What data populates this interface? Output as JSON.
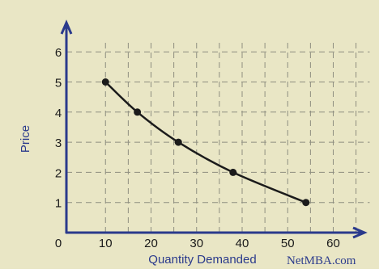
{
  "colors": {
    "background": "#e9e6c5",
    "axis": "#2a3a8c",
    "grid": "#8e8e80",
    "curve": "#1b1b1b",
    "point": "#1b1b1b",
    "axis_title": "#2a3a8c",
    "tick_label": "#1a1a1a"
  },
  "watermark": "NetMBA.com",
  "chart_data": {
    "type": "line",
    "title": "",
    "xlabel": "Quantity Demanded",
    "ylabel": "Price",
    "xlim": [
      0,
      72
    ],
    "ylim": [
      0,
      7
    ],
    "x_tick_labels": [
      "0",
      "10",
      "20",
      "30",
      "40",
      "50",
      "60"
    ],
    "x_tick_values": [
      0,
      10,
      20,
      30,
      40,
      50,
      60
    ],
    "y_tick_labels": [
      "1",
      "2",
      "3",
      "4",
      "5",
      "6"
    ],
    "y_tick_values": [
      1,
      2,
      3,
      4,
      5,
      6
    ],
    "grid": true,
    "grid_x": [
      10,
      15,
      20,
      25,
      30,
      35,
      40,
      45,
      50,
      55,
      60,
      65
    ],
    "grid_y": [
      1,
      2,
      3,
      4,
      5,
      6
    ],
    "series": [
      {
        "x": [
          10,
          17,
          26,
          38,
          54
        ],
        "y": [
          5,
          4,
          3,
          2,
          1
        ]
      }
    ]
  }
}
